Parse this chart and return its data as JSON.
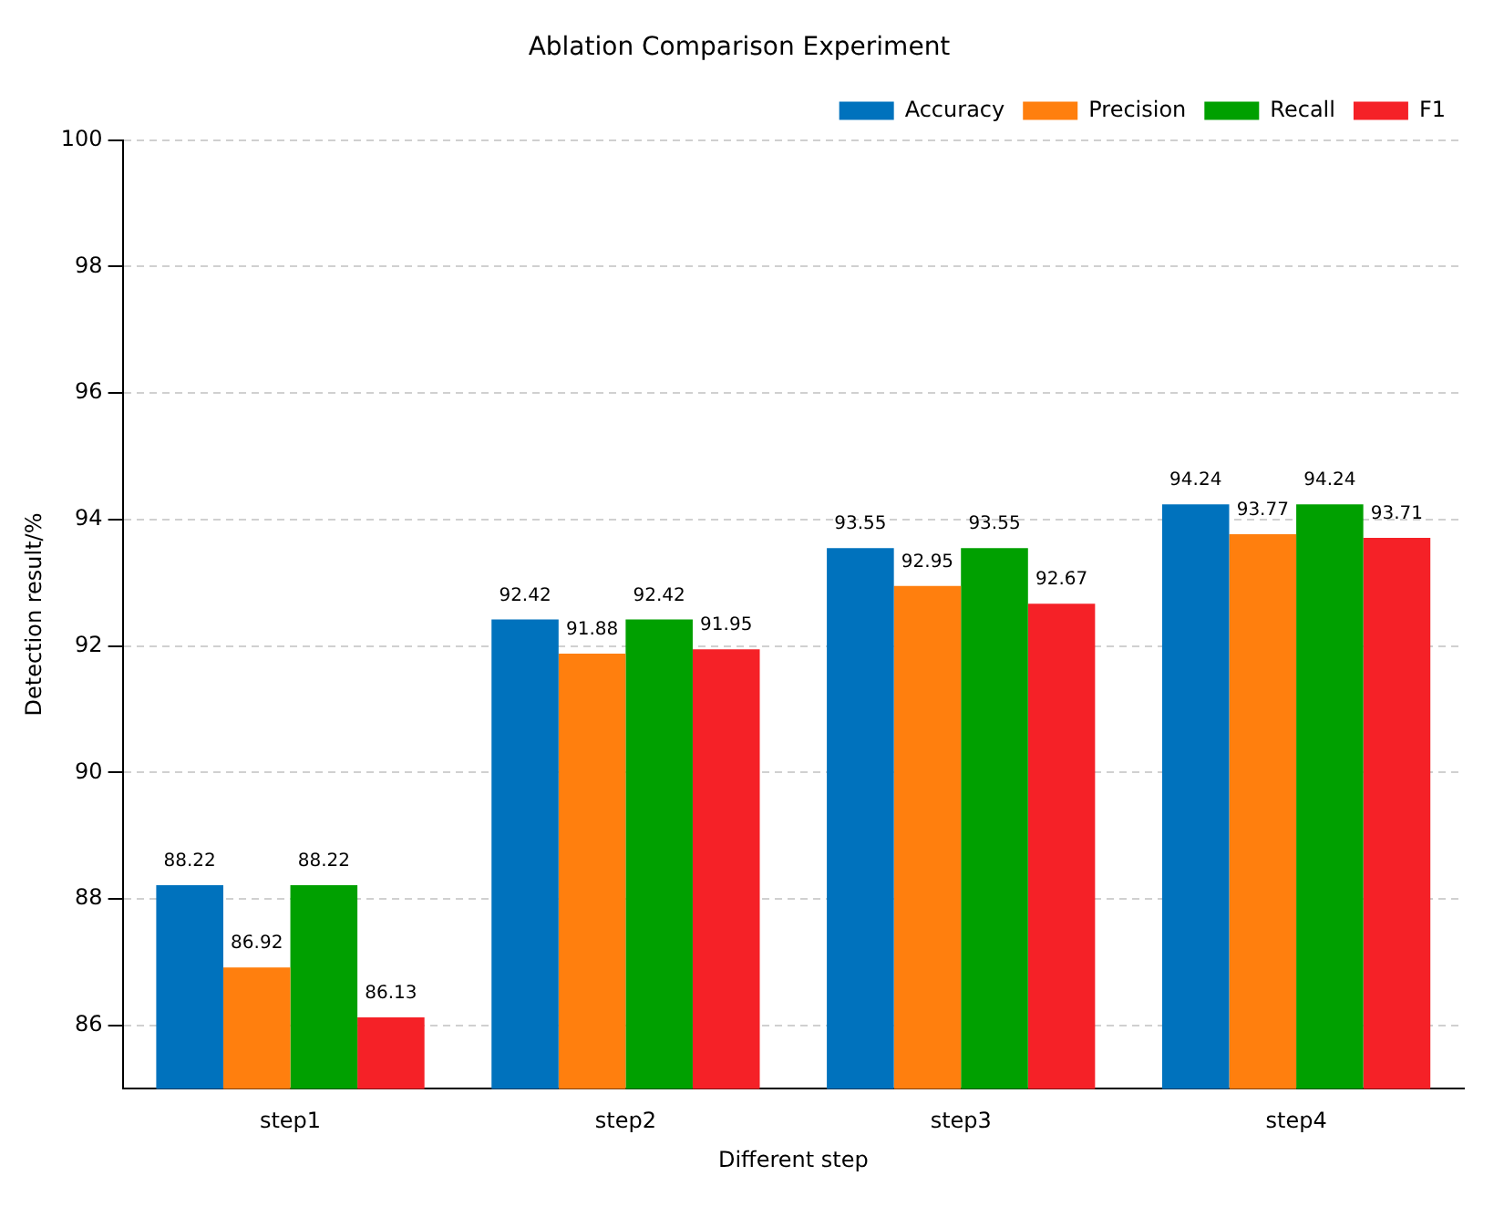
{
  "chart_data": {
    "type": "bar",
    "title": "Ablation Comparison Experiment",
    "xlabel": "Different step",
    "ylabel": "Detection result/%",
    "categories": [
      "step1",
      "step2",
      "step3",
      "step4"
    ],
    "series": [
      {
        "name": "Accuracy",
        "color": "#0072bd",
        "values": [
          88.22,
          92.42,
          93.55,
          94.24
        ]
      },
      {
        "name": "Precision",
        "color": "#ff7f0e",
        "values": [
          86.92,
          91.88,
          92.95,
          93.77
        ]
      },
      {
        "name": "Recall",
        "color": "#00a000",
        "values": [
          88.22,
          92.42,
          93.55,
          94.24
        ]
      },
      {
        "name": "F1",
        "color": "#f52127",
        "values": [
          86.13,
          91.95,
          92.67,
          93.71
        ]
      }
    ],
    "ylim": [
      85,
      100
    ],
    "yticks": [
      86,
      88,
      90,
      92,
      94,
      96,
      98,
      100
    ],
    "grid": "y",
    "legend": "top right",
    "data_labels": true
  }
}
